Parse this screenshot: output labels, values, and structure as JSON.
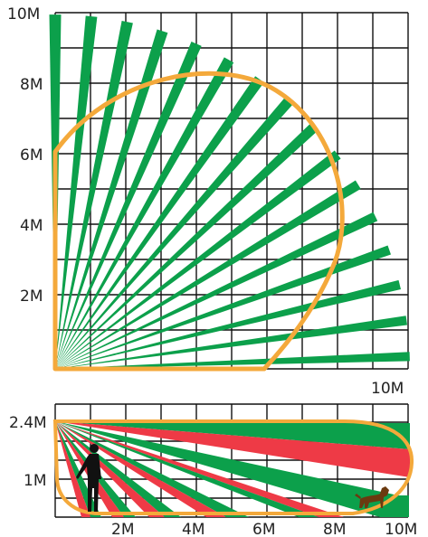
{
  "top_view": {
    "y_labels": [
      "10M",
      "8M",
      "6M",
      "4M",
      "2M"
    ],
    "x_label": "10M",
    "colors": {
      "beam": "#0ca04b",
      "zone": "#f4a93b",
      "grid": "#111111"
    }
  },
  "side_view": {
    "y_labels": [
      "2.4M",
      "1M"
    ],
    "x_labels": [
      "2M",
      "4M",
      "6M",
      "8M",
      "10M"
    ],
    "colors": {
      "beam_green": "#0ca04b",
      "beam_red": "#ee3a46",
      "zone": "#f4a93b",
      "figures": [
        "person",
        "dog"
      ]
    }
  }
}
